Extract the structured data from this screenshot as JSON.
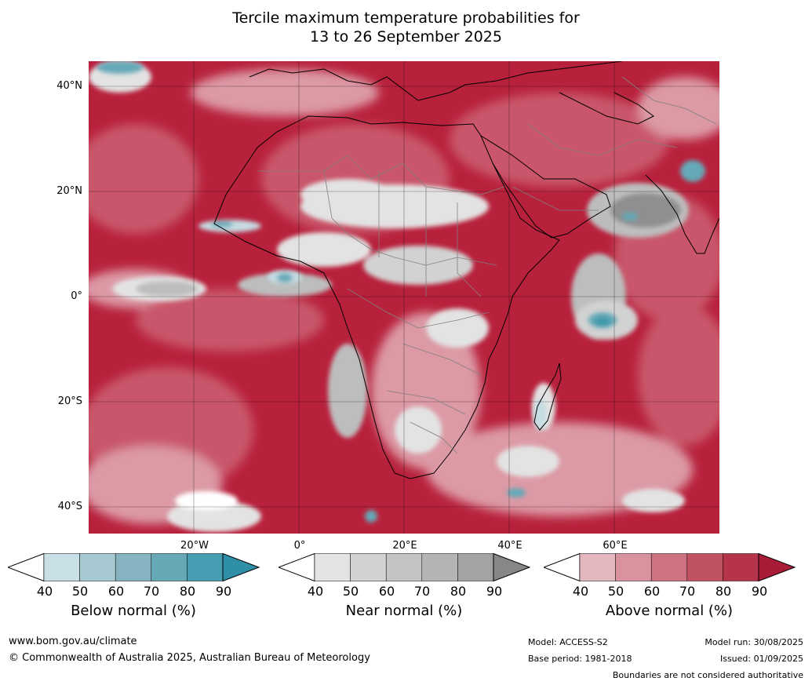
{
  "title": {
    "line1": "Tercile maximum temperature probabilities for",
    "line2": "13 to 26 September 2025"
  },
  "map": {
    "lat_labels": [
      "40°N",
      "20°N",
      "0°",
      "20°S",
      "40°S"
    ],
    "lon_labels": [
      "20°W",
      "0°",
      "20°E",
      "40°E",
      "60°E"
    ],
    "colors": {
      "ocean_above": "#b8213c",
      "above_mid": "#c9576a",
      "above_light": "#dc9aa5",
      "near_light": "#e3e3e3",
      "near_mid": "#bdbdbd",
      "near_dark": "#8f8f8f",
      "below_light": "#c5dde3",
      "below_mid": "#65a9b8",
      "below_dark": "#3f97aa",
      "coast": "#000000",
      "border": "#808080",
      "grid": "#000000"
    }
  },
  "legends": [
    {
      "title": "Below normal (%)",
      "ticks": [
        "40",
        "50",
        "60",
        "70",
        "80",
        "90"
      ],
      "colors": [
        "#ffffff",
        "#c8dfe5",
        "#a6c9d1",
        "#86b5c1",
        "#67a8b6",
        "#469cb0",
        "#2e8fa7"
      ]
    },
    {
      "title": "Near normal (%)",
      "ticks": [
        "40",
        "50",
        "60",
        "70",
        "80",
        "90"
      ],
      "colors": [
        "#ffffff",
        "#e3e3e3",
        "#d2d2d2",
        "#c4c4c4",
        "#b4b4b4",
        "#a3a3a3",
        "#878787"
      ]
    },
    {
      "title": "Above normal (%)",
      "ticks": [
        "40",
        "50",
        "60",
        "70",
        "80",
        "90"
      ],
      "colors": [
        "#ffffff",
        "#e3b7be",
        "#d8939f",
        "#cd7280",
        "#c05262",
        "#b5344a",
        "#a81c38"
      ]
    }
  ],
  "footer": {
    "website": "www.bom.gov.au/climate",
    "copyright": "© Commonwealth of Australia 2025, Australian Bureau of Meteorology",
    "model": "Model: ACCESS-S2",
    "base_period": "Base period: 1981-2018",
    "model_run": "Model run: 30/08/2025",
    "issued": "Issued: 01/09/2025",
    "disclaimer": "Boundaries are not considered authoritative"
  }
}
